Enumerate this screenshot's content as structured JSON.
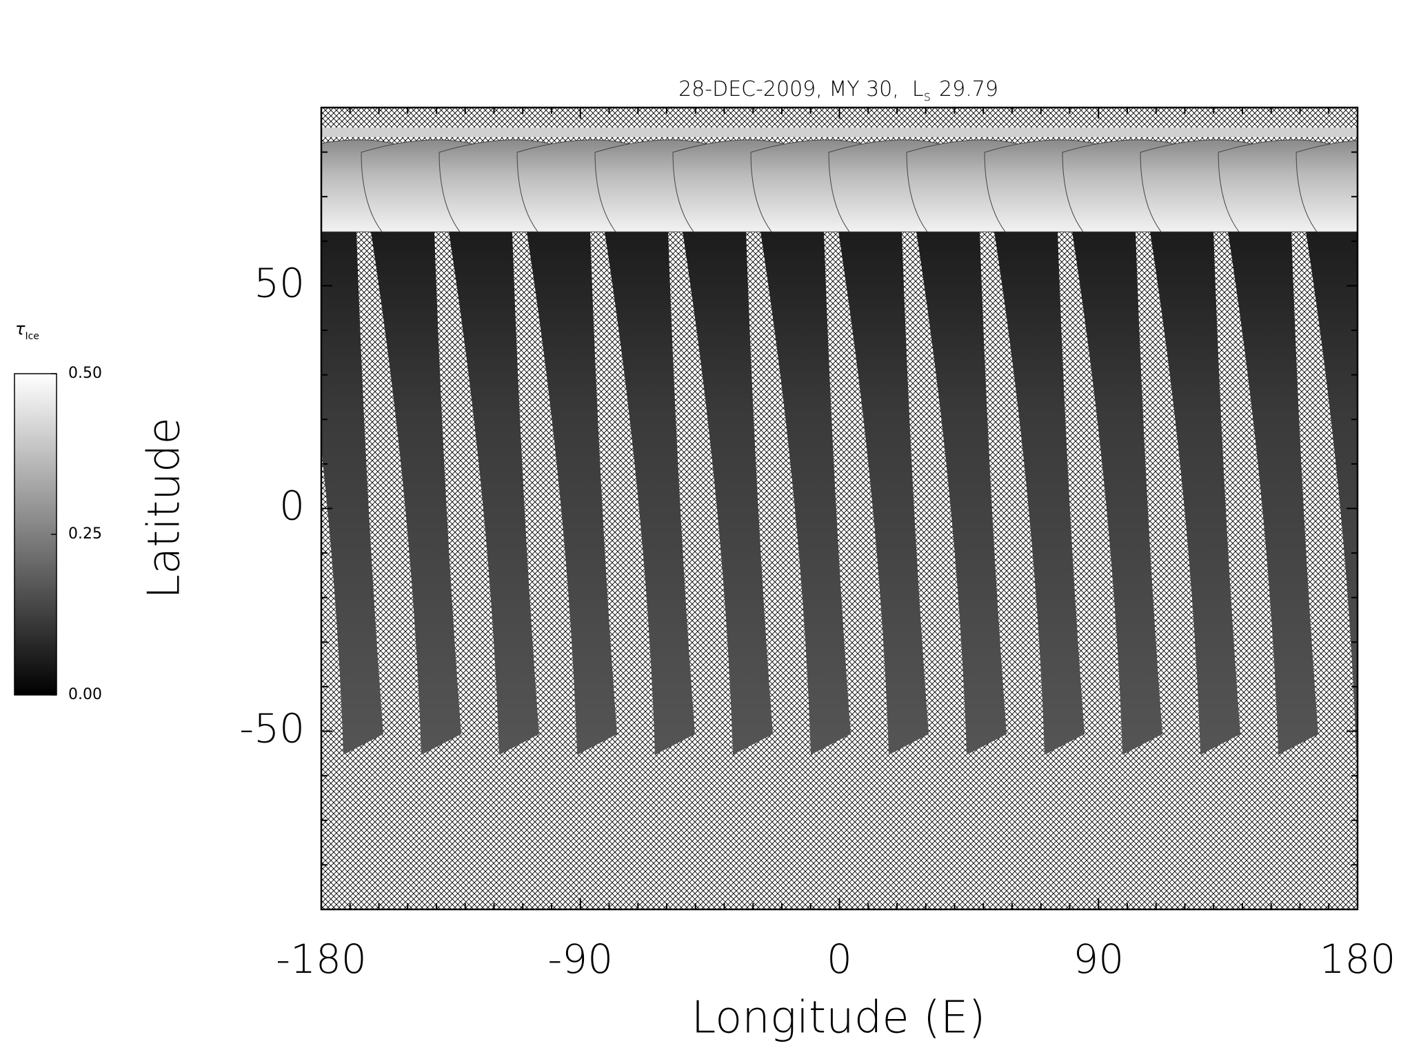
{
  "chart_data": {
    "type": "map",
    "title": "28-DEC-2009, MY 30,  L",
    "title_subscript": "s",
    "title_value": "29.79",
    "xlabel": "Longitude (E)",
    "ylabel": "Latitude",
    "xlim": [
      -180,
      180
    ],
    "ylim": [
      -90,
      90
    ],
    "xticks": [
      -180,
      -90,
      0,
      90,
      180
    ],
    "yticks": [
      -50,
      0,
      50
    ],
    "xminorticks": [
      -170,
      -160,
      -150,
      -140,
      -130,
      -120,
      -110,
      -100,
      -80,
      -70,
      -60,
      -50,
      -40,
      -30,
      -20,
      -10,
      10,
      20,
      30,
      40,
      50,
      60,
      70,
      80,
      100,
      110,
      120,
      130,
      140,
      150,
      160,
      170
    ],
    "yminorticks": [
      -80,
      -70,
      -60,
      -40,
      -30,
      -20,
      -10,
      10,
      20,
      30,
      40,
      60,
      70,
      80
    ],
    "colorbar": {
      "label": "τ",
      "label_subscript": "Ice",
      "lim": [
        0,
        0.5
      ],
      "ticks": [
        {
          "value": 0,
          "label": "0.00"
        },
        {
          "value": 0.25,
          "label": "0.25"
        },
        {
          "value": 0.5,
          "label": "0.50"
        }
      ],
      "colors": [
        "#000000",
        "#ffffff"
      ]
    }
  }
}
